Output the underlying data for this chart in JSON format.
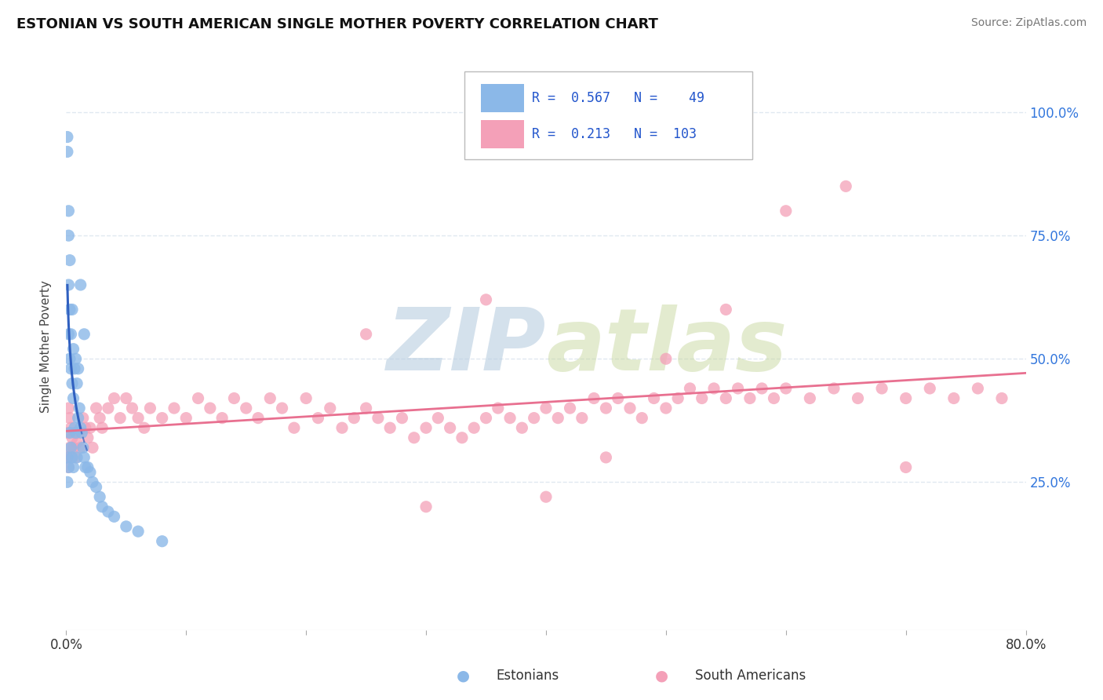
{
  "title": "ESTONIAN VS SOUTH AMERICAN SINGLE MOTHER POVERTY CORRELATION CHART",
  "source": "Source: ZipAtlas.com",
  "ylabel": "Single Mother Poverty",
  "y_ticks_right": [
    "25.0%",
    "50.0%",
    "75.0%",
    "100.0%"
  ],
  "y_ticks_right_vals": [
    0.25,
    0.5,
    0.75,
    1.0
  ],
  "xlim": [
    0.0,
    0.8
  ],
  "ylim": [
    -0.05,
    1.1
  ],
  "legend_R1": "0.567",
  "legend_N1": "49",
  "legend_R2": "0.213",
  "legend_N2": "103",
  "color_estonian": "#8BB8E8",
  "color_sa": "#F4A0B8",
  "color_line_estonian": "#3060C0",
  "color_line_sa": "#E87090",
  "watermark_color": "#D0E4F0",
  "background_color": "#FFFFFF",
  "grid_color": "#E0E8F0",
  "est_x": [
    0.001,
    0.001,
    0.001,
    0.001,
    0.002,
    0.002,
    0.002,
    0.002,
    0.002,
    0.003,
    0.003,
    0.003,
    0.003,
    0.004,
    0.004,
    0.004,
    0.005,
    0.005,
    0.005,
    0.006,
    0.006,
    0.006,
    0.007,
    0.007,
    0.008,
    0.008,
    0.009,
    0.009,
    0.01,
    0.01,
    0.011,
    0.012,
    0.013,
    0.014,
    0.015,
    0.016,
    0.018,
    0.02,
    0.022,
    0.025,
    0.028,
    0.03,
    0.035,
    0.04,
    0.05,
    0.012,
    0.015,
    0.06,
    0.08
  ],
  "est_y": [
    0.95,
    0.92,
    0.3,
    0.25,
    0.8,
    0.75,
    0.65,
    0.55,
    0.28,
    0.7,
    0.6,
    0.5,
    0.35,
    0.55,
    0.48,
    0.32,
    0.6,
    0.45,
    0.3,
    0.52,
    0.42,
    0.28,
    0.48,
    0.36,
    0.5,
    0.35,
    0.45,
    0.3,
    0.48,
    0.38,
    0.4,
    0.36,
    0.35,
    0.32,
    0.3,
    0.28,
    0.28,
    0.27,
    0.25,
    0.24,
    0.22,
    0.2,
    0.19,
    0.18,
    0.16,
    0.65,
    0.55,
    0.15,
    0.13
  ],
  "sa_x": [
    0.001,
    0.001,
    0.002,
    0.002,
    0.003,
    0.003,
    0.004,
    0.004,
    0.005,
    0.006,
    0.007,
    0.008,
    0.009,
    0.01,
    0.012,
    0.014,
    0.016,
    0.018,
    0.02,
    0.022,
    0.025,
    0.028,
    0.03,
    0.035,
    0.04,
    0.045,
    0.05,
    0.055,
    0.06,
    0.065,
    0.07,
    0.08,
    0.09,
    0.1,
    0.11,
    0.12,
    0.13,
    0.14,
    0.15,
    0.16,
    0.17,
    0.18,
    0.19,
    0.2,
    0.21,
    0.22,
    0.23,
    0.24,
    0.25,
    0.26,
    0.27,
    0.28,
    0.29,
    0.3,
    0.31,
    0.32,
    0.33,
    0.34,
    0.35,
    0.36,
    0.37,
    0.38,
    0.39,
    0.4,
    0.41,
    0.42,
    0.43,
    0.44,
    0.45,
    0.46,
    0.47,
    0.48,
    0.49,
    0.5,
    0.51,
    0.52,
    0.53,
    0.54,
    0.55,
    0.56,
    0.57,
    0.58,
    0.59,
    0.6,
    0.62,
    0.64,
    0.66,
    0.68,
    0.7,
    0.72,
    0.74,
    0.76,
    0.78,
    0.35,
    0.6,
    0.25,
    0.45,
    0.3,
    0.5,
    0.4,
    0.55,
    0.65,
    0.7
  ],
  "sa_y": [
    0.35,
    0.3,
    0.4,
    0.28,
    0.38,
    0.32,
    0.36,
    0.3,
    0.34,
    0.32,
    0.35,
    0.3,
    0.33,
    0.35,
    0.32,
    0.38,
    0.36,
    0.34,
    0.36,
    0.32,
    0.4,
    0.38,
    0.36,
    0.4,
    0.42,
    0.38,
    0.42,
    0.4,
    0.38,
    0.36,
    0.4,
    0.38,
    0.4,
    0.38,
    0.42,
    0.4,
    0.38,
    0.42,
    0.4,
    0.38,
    0.42,
    0.4,
    0.36,
    0.42,
    0.38,
    0.4,
    0.36,
    0.38,
    0.4,
    0.38,
    0.36,
    0.38,
    0.34,
    0.36,
    0.38,
    0.36,
    0.34,
    0.36,
    0.38,
    0.4,
    0.38,
    0.36,
    0.38,
    0.4,
    0.38,
    0.4,
    0.38,
    0.42,
    0.4,
    0.42,
    0.4,
    0.38,
    0.42,
    0.4,
    0.42,
    0.44,
    0.42,
    0.44,
    0.42,
    0.44,
    0.42,
    0.44,
    0.42,
    0.44,
    0.42,
    0.44,
    0.42,
    0.44,
    0.42,
    0.44,
    0.42,
    0.44,
    0.42,
    0.62,
    0.8,
    0.55,
    0.3,
    0.2,
    0.5,
    0.22,
    0.6,
    0.85,
    0.28
  ]
}
